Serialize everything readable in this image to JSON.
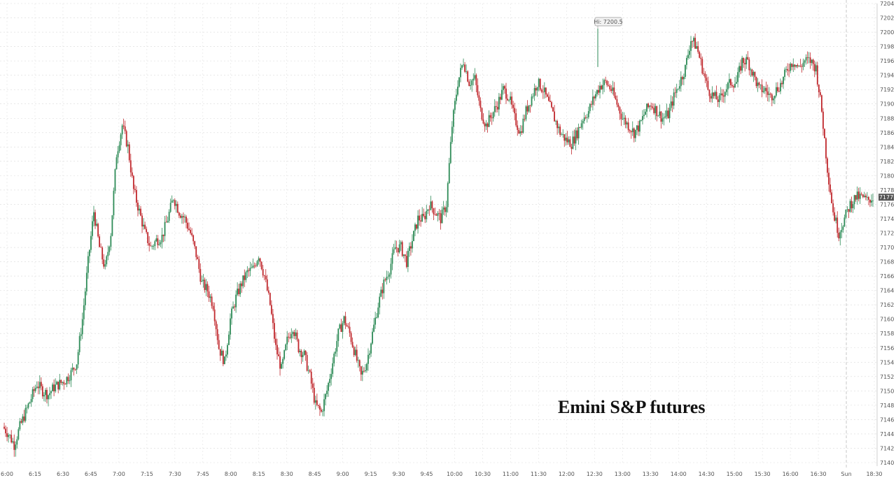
{
  "chart_data": {
    "type": "candlestick",
    "title": "Emini S&P futures",
    "ylim": [
      7140,
      7204
    ],
    "y_ticks": [
      7140,
      7142,
      7144,
      7146,
      7148,
      7150,
      7152,
      7154,
      7156,
      7158,
      7160,
      7162,
      7164,
      7166,
      7168,
      7170,
      7172,
      7174,
      7176,
      7178,
      7180,
      7182,
      7184,
      7186,
      7188,
      7190,
      7192,
      7194,
      7196,
      7198,
      7200,
      7202,
      7204
    ],
    "x_ticks": [
      "6:00",
      "6:15",
      "6:30",
      "6:45",
      "7:00",
      "7:15",
      "7:30",
      "7:45",
      "8:00",
      "8:15",
      "8:30",
      "8:45",
      "9:00",
      "9:15",
      "9:30",
      "9:45",
      "10:00",
      "10:30",
      "11:00",
      "11:30",
      "12:00",
      "12:30",
      "13:00",
      "13:30",
      "14:00",
      "14:30",
      "15:00",
      "15:30",
      "16:00",
      "16:30",
      "Sun",
      "18:30"
    ],
    "high_annotation": {
      "label": "Hi: 7200.5",
      "value": 7200.5
    },
    "last_price": {
      "label": "7177",
      "value": 7177
    },
    "grid": true,
    "colors": {
      "up": "#2e8b57",
      "down": "#c0282d"
    },
    "price_path": [
      [
        0,
        7145
      ],
      [
        4,
        7144
      ],
      [
        8,
        7142.5
      ],
      [
        12,
        7145
      ],
      [
        16,
        7147
      ],
      [
        20,
        7149
      ],
      [
        24,
        7151
      ],
      [
        28,
        7150
      ],
      [
        32,
        7149.5
      ],
      [
        36,
        7150.5
      ],
      [
        40,
        7151
      ],
      [
        44,
        7151.5
      ],
      [
        48,
        7152.5
      ],
      [
        52,
        7154
      ],
      [
        56,
        7160
      ],
      [
        60,
        7168
      ],
      [
        64,
        7175
      ],
      [
        68,
        7170
      ],
      [
        72,
        7167
      ],
      [
        76,
        7172
      ],
      [
        80,
        7183
      ],
      [
        84,
        7187
      ],
      [
        88,
        7184
      ],
      [
        92,
        7178
      ],
      [
        96,
        7175
      ],
      [
        100,
        7172
      ],
      [
        104,
        7170
      ],
      [
        108,
        7171
      ],
      [
        112,
        7171.5
      ],
      [
        116,
        7174
      ],
      [
        120,
        7177
      ],
      [
        124,
        7175
      ],
      [
        128,
        7174
      ],
      [
        132,
        7172
      ],
      [
        136,
        7169
      ],
      [
        140,
        7165
      ],
      [
        144,
        7164
      ],
      [
        148,
        7162
      ],
      [
        152,
        7156
      ],
      [
        156,
        7154
      ],
      [
        160,
        7160
      ],
      [
        164,
        7163
      ],
      [
        168,
        7165
      ],
      [
        172,
        7166.5
      ],
      [
        176,
        7167
      ],
      [
        180,
        7169
      ],
      [
        184,
        7166
      ],
      [
        188,
        7162
      ],
      [
        192,
        7156
      ],
      [
        196,
        7153
      ],
      [
        200,
        7157
      ],
      [
        204,
        7159
      ],
      [
        208,
        7156
      ],
      [
        212,
        7155
      ],
      [
        216,
        7152
      ],
      [
        220,
        7148
      ],
      [
        224,
        7147
      ],
      [
        228,
        7150
      ],
      [
        232,
        7154
      ],
      [
        236,
        7158
      ],
      [
        240,
        7160
      ],
      [
        244,
        7158
      ],
      [
        248,
        7155
      ],
      [
        252,
        7152
      ],
      [
        256,
        7154
      ],
      [
        260,
        7158
      ],
      [
        264,
        7162
      ],
      [
        268,
        7165
      ],
      [
        272,
        7167
      ],
      [
        276,
        7170
      ],
      [
        280,
        7170
      ],
      [
        284,
        7168
      ],
      [
        288,
        7171
      ],
      [
        292,
        7174
      ],
      [
        296,
        7174
      ],
      [
        300,
        7176
      ],
      [
        304,
        7175
      ],
      [
        308,
        7174
      ],
      [
        312,
        7176
      ],
      [
        316,
        7187
      ],
      [
        320,
        7193
      ],
      [
        324,
        7196
      ],
      [
        328,
        7193
      ],
      [
        332,
        7193.5
      ],
      [
        336,
        7189
      ],
      [
        340,
        7187
      ],
      [
        344,
        7188.5
      ],
      [
        348,
        7190
      ],
      [
        352,
        7192
      ],
      [
        356,
        7191
      ],
      [
        360,
        7188
      ],
      [
        364,
        7186
      ],
      [
        368,
        7189
      ],
      [
        372,
        7191
      ],
      [
        376,
        7193
      ],
      [
        380,
        7192
      ],
      [
        384,
        7190
      ],
      [
        388,
        7188
      ],
      [
        392,
        7186
      ],
      [
        396,
        7185
      ],
      [
        400,
        7184.5
      ],
      [
        404,
        7186
      ],
      [
        408,
        7188
      ],
      [
        412,
        7189
      ],
      [
        416,
        7191
      ],
      [
        420,
        7192.5
      ],
      [
        424,
        7193
      ],
      [
        428,
        7192
      ],
      [
        432,
        7190
      ],
      [
        436,
        7188
      ],
      [
        440,
        7187
      ],
      [
        444,
        7186
      ],
      [
        448,
        7187
      ],
      [
        452,
        7189
      ],
      [
        456,
        7190
      ],
      [
        460,
        7189
      ],
      [
        464,
        7188
      ],
      [
        468,
        7188.5
      ],
      [
        472,
        7191
      ],
      [
        476,
        7193
      ],
      [
        480,
        7195
      ],
      [
        484,
        7199
      ],
      [
        488,
        7198
      ],
      [
        492,
        7195
      ],
      [
        496,
        7192
      ],
      [
        500,
        7191
      ],
      [
        504,
        7190.5
      ],
      [
        508,
        7192
      ],
      [
        512,
        7193
      ],
      [
        516,
        7193
      ],
      [
        520,
        7196
      ],
      [
        524,
        7196
      ],
      [
        528,
        7194
      ],
      [
        532,
        7192
      ],
      [
        536,
        7192
      ],
      [
        540,
        7191
      ],
      [
        544,
        7192
      ],
      [
        548,
        7193
      ],
      [
        552,
        7195
      ],
      [
        556,
        7196
      ],
      [
        560,
        7195
      ],
      [
        564,
        7196
      ],
      [
        568,
        7196
      ],
      [
        572,
        7195
      ],
      [
        576,
        7189
      ],
      [
        580,
        7181
      ],
      [
        584,
        7175
      ],
      [
        588,
        7172
      ],
      [
        592,
        7174
      ],
      [
        596,
        7176
      ],
      [
        600,
        7177
      ],
      [
        604,
        7177
      ],
      [
        608,
        7176.5
      ],
      [
        612,
        7177
      ]
    ]
  }
}
